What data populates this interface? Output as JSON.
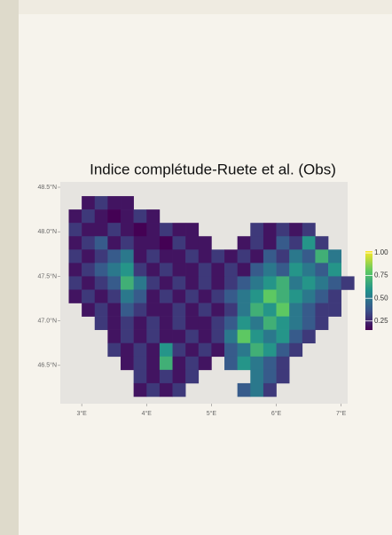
{
  "chart_data": {
    "type": "heatmap",
    "title": "Indice complétude-Ruete et al. (Obs)",
    "xlim": [
      2.67,
      7.1
    ],
    "ylim": [
      46.07,
      48.56
    ],
    "xticks": [
      {
        "value": 3,
        "label": "3°E"
      },
      {
        "value": 4,
        "label": "4°E"
      },
      {
        "value": 5,
        "label": "5°E"
      },
      {
        "value": 6,
        "label": "6°E"
      },
      {
        "value": 7,
        "label": "7°E"
      }
    ],
    "yticks": [
      {
        "value": 48.5,
        "label": "48.5°N"
      },
      {
        "value": 48,
        "label": "48.0°N"
      },
      {
        "value": 47.5,
        "label": "47.5°N"
      },
      {
        "value": 47,
        "label": "47.0°N"
      },
      {
        "value": 46.5,
        "label": "46.5°N"
      }
    ],
    "x": [
      2.8,
      3.0,
      3.2,
      3.4,
      3.6,
      3.8,
      4.0,
      4.2,
      4.4,
      4.6,
      4.8,
      5.0,
      5.2,
      5.4,
      5.6,
      5.8,
      6.0,
      6.2,
      6.4,
      6.6,
      6.8,
      7.0
    ],
    "y": [
      48.4,
      48.25,
      48.1,
      47.95,
      47.8,
      47.65,
      47.5,
      47.35,
      47.2,
      47.05,
      46.9,
      46.75,
      46.6,
      46.45,
      46.3
    ],
    "values": [
      [
        null,
        0.2,
        0.3,
        0.2,
        0.2,
        null,
        null,
        null,
        null,
        null,
        null,
        null,
        null,
        null,
        null,
        null,
        null,
        null,
        null,
        null,
        null,
        null
      ],
      [
        0.2,
        0.3,
        0.2,
        0.1,
        0.2,
        0.3,
        0.2,
        null,
        null,
        null,
        null,
        null,
        null,
        null,
        null,
        null,
        null,
        null,
        null,
        null,
        null,
        null
      ],
      [
        0.3,
        0.2,
        0.2,
        0.3,
        0.2,
        0.1,
        0.2,
        0.3,
        0.2,
        0.2,
        null,
        null,
        null,
        null,
        0.3,
        0.2,
        0.3,
        0.2,
        0.3,
        null,
        null,
        null
      ],
      [
        0.2,
        0.3,
        0.4,
        0.2,
        0.3,
        0.2,
        0.2,
        0.1,
        0.3,
        0.2,
        0.2,
        null,
        null,
        0.2,
        0.3,
        0.2,
        0.4,
        0.3,
        0.6,
        0.3,
        null,
        null
      ],
      [
        0.3,
        0.2,
        0.3,
        0.4,
        0.5,
        0.2,
        0.3,
        0.2,
        0.2,
        0.3,
        0.2,
        0.3,
        0.2,
        0.3,
        0.2,
        0.4,
        0.3,
        0.5,
        0.4,
        0.7,
        0.5,
        null
      ],
      [
        0.2,
        0.3,
        0.4,
        0.5,
        0.6,
        0.3,
        0.2,
        0.3,
        0.2,
        0.2,
        0.3,
        0.2,
        0.3,
        0.2,
        0.4,
        0.5,
        0.4,
        0.6,
        0.5,
        0.4,
        0.6,
        null
      ],
      [
        0.3,
        0.2,
        0.3,
        0.4,
        0.7,
        0.5,
        0.3,
        0.2,
        0.3,
        0.2,
        0.3,
        0.2,
        0.3,
        0.4,
        0.5,
        0.6,
        0.7,
        0.5,
        0.6,
        0.5,
        0.4,
        0.3
      ],
      [
        0.2,
        0.3,
        0.2,
        0.3,
        0.5,
        0.4,
        0.2,
        0.3,
        0.2,
        0.3,
        0.2,
        0.3,
        0.4,
        0.5,
        0.6,
        0.8,
        0.7,
        0.6,
        0.5,
        0.4,
        0.3,
        null
      ],
      [
        null,
        0.2,
        0.3,
        0.2,
        0.4,
        0.3,
        0.2,
        0.2,
        0.3,
        0.2,
        0.3,
        0.2,
        0.3,
        0.5,
        0.7,
        0.6,
        0.8,
        0.5,
        0.4,
        0.3,
        0.3,
        null
      ],
      [
        null,
        null,
        0.3,
        0.2,
        0.3,
        0.2,
        0.3,
        0.2,
        0.3,
        0.2,
        0.2,
        0.3,
        0.4,
        0.6,
        0.5,
        0.7,
        0.6,
        0.5,
        0.4,
        0.3,
        null,
        null
      ],
      [
        null,
        null,
        null,
        0.2,
        0.3,
        0.2,
        0.3,
        0.2,
        0.2,
        0.3,
        0.2,
        0.3,
        0.5,
        0.8,
        0.6,
        0.5,
        0.6,
        0.4,
        0.3,
        null,
        null,
        null
      ],
      [
        null,
        null,
        null,
        0.3,
        0.2,
        0.3,
        0.2,
        0.6,
        0.3,
        0.2,
        0.3,
        0.2,
        0.4,
        0.5,
        0.7,
        0.6,
        0.4,
        0.3,
        null,
        null,
        null,
        null
      ],
      [
        null,
        null,
        null,
        null,
        0.2,
        0.3,
        0.2,
        0.7,
        0.2,
        0.3,
        0.2,
        null,
        0.4,
        0.6,
        0.5,
        0.4,
        0.3,
        null,
        null,
        null,
        null,
        null
      ],
      [
        null,
        null,
        null,
        null,
        null,
        0.3,
        0.2,
        0.3,
        0.2,
        0.3,
        null,
        null,
        null,
        null,
        0.5,
        0.4,
        0.3,
        null,
        null,
        null,
        null,
        null
      ],
      [
        null,
        null,
        null,
        null,
        null,
        0.2,
        0.3,
        0.2,
        0.3,
        null,
        null,
        null,
        null,
        0.4,
        0.5,
        0.3,
        null,
        null,
        null,
        null,
        null,
        null
      ]
    ],
    "colors": [
      "#440154",
      "#3b528b",
      "#21918c",
      "#5ec962",
      "#fde725"
    ],
    "colorbar": {
      "lim": [
        0.15,
        1.02
      ],
      "ticks": [
        {
          "value": 1,
          "label": "1.00"
        },
        {
          "value": 0.75,
          "label": "0.75"
        },
        {
          "value": 0.5,
          "label": "0.50"
        },
        {
          "value": 0.25,
          "label": "0.25"
        }
      ]
    }
  }
}
